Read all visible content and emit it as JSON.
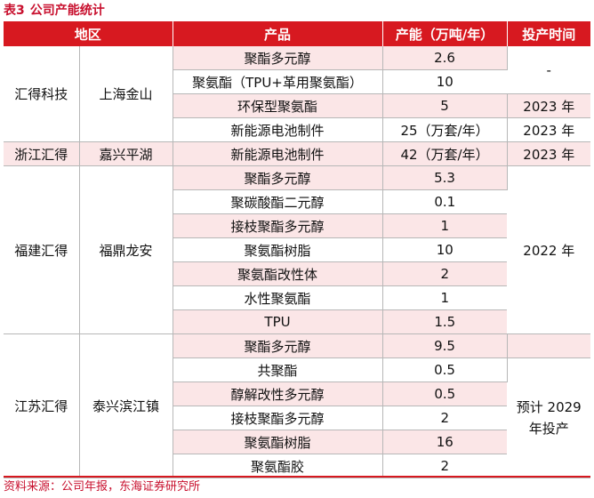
{
  "caption": {
    "number": "表3",
    "title": "公司产能统计"
  },
  "headers": {
    "region": "地区",
    "product": "产品",
    "capacity": "产能（万吨/年）",
    "time": "投产时间"
  },
  "groups": [
    {
      "company": "汇得科技",
      "area": "上海金山",
      "rows": [
        {
          "product": "聚酯多元醇",
          "capacity": "2.6"
        },
        {
          "product": "聚氨酯（TPU+革用聚氨酯）",
          "capacity": "10"
        },
        {
          "product": "环保型聚氨酯",
          "capacity": "5"
        },
        {
          "product": "新能源电池制件",
          "capacity": "25（万套/年）"
        }
      ],
      "times": [
        "-",
        "2023 年",
        "2023 年"
      ]
    },
    {
      "company": "浙江汇得",
      "area": "嘉兴平湖",
      "rows": [
        {
          "product": "新能源电池制件",
          "capacity": "42（万套/年）"
        }
      ],
      "times": [
        "2023 年"
      ]
    },
    {
      "company": "福建汇得",
      "area": "福鼎龙安",
      "rows": [
        {
          "product": "聚酯多元醇",
          "capacity": "5.3"
        },
        {
          "product": "聚碳酸酯二元醇",
          "capacity": "0.1"
        },
        {
          "product": "接枝聚酯多元醇",
          "capacity": "1"
        },
        {
          "product": "聚氨酯树脂",
          "capacity": "10"
        },
        {
          "product": "聚氨酯改性体",
          "capacity": "2"
        },
        {
          "product": "水性聚氨酯",
          "capacity": "1"
        },
        {
          "product": "TPU",
          "capacity": "1.5"
        }
      ],
      "times": [
        "2022 年"
      ]
    },
    {
      "company": "江苏汇得",
      "area": "泰兴滨江镇",
      "rows": [
        {
          "product": "聚酯多元醇",
          "capacity": "9.5"
        },
        {
          "product": "共聚酯",
          "capacity": "0.5"
        },
        {
          "product": "醇解改性多元醇",
          "capacity": "0.5"
        },
        {
          "product": "接枝聚酯多元醇",
          "capacity": "2"
        },
        {
          "product": "聚氨酯树脂",
          "capacity": "16"
        },
        {
          "product": "聚氨酯胶",
          "capacity": "2"
        }
      ],
      "times": [
        "预计 2029 年投产"
      ]
    }
  ],
  "footer": "资料来源：公司年报，东海证券研究所"
}
